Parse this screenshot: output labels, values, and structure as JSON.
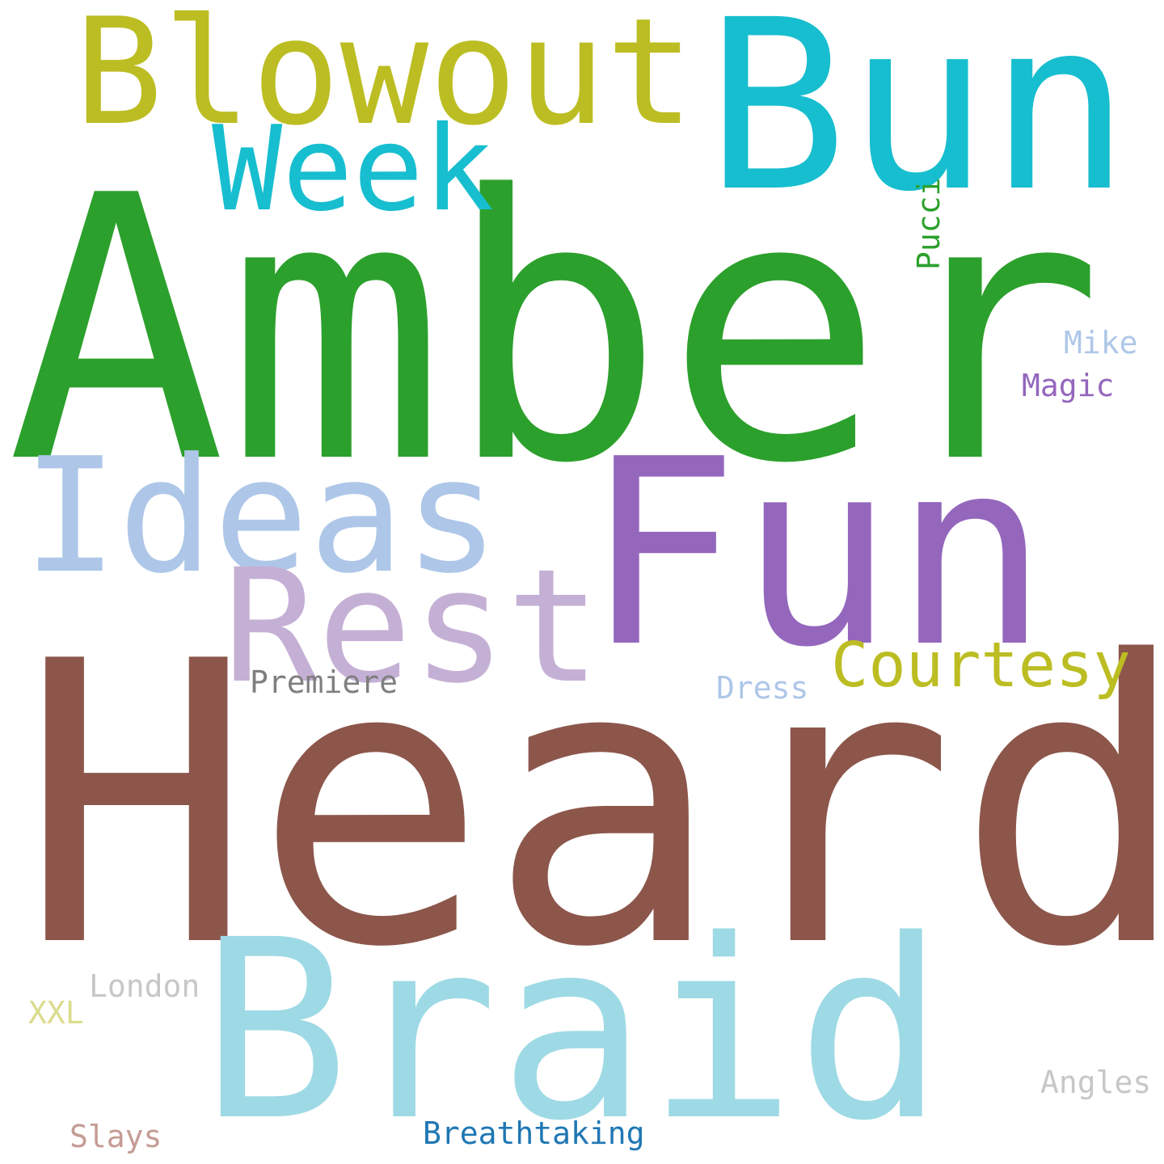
{
  "words": [
    {
      "id": "amber",
      "text": "Amber",
      "color": "#2ca02c"
    },
    {
      "id": "heard",
      "text": "Heard",
      "color": "#8c564b"
    },
    {
      "id": "bun",
      "text": "Bun",
      "color": "#17becf"
    },
    {
      "id": "braid",
      "text": "Braid",
      "color": "#9edae5"
    },
    {
      "id": "fun",
      "text": "Fun",
      "color": "#9467bd"
    },
    {
      "id": "blowout",
      "text": "Blowout",
      "color": "#bcbd22"
    },
    {
      "id": "ideas",
      "text": "Ideas",
      "color": "#aec7e8"
    },
    {
      "id": "rest",
      "text": "Rest",
      "color": "#c5b0d5"
    },
    {
      "id": "week",
      "text": "Week",
      "color": "#17becf"
    },
    {
      "id": "courtesy",
      "text": "Courtesy",
      "color": "#bcbd22"
    },
    {
      "id": "premiere",
      "text": "Premiere",
      "color": "#7f7f7f"
    },
    {
      "id": "dress",
      "text": "Dress",
      "color": "#aec7e8"
    },
    {
      "id": "pucci",
      "text": "Pucci",
      "color": "#2ca02c"
    },
    {
      "id": "mike",
      "text": "Mike",
      "color": "#aec7e8"
    },
    {
      "id": "magic",
      "text": "Magic",
      "color": "#9467bd"
    },
    {
      "id": "london",
      "text": "London",
      "color": "#c7c7c7"
    },
    {
      "id": "xxl",
      "text": "XXL",
      "color": "#dbdb8d"
    },
    {
      "id": "angles",
      "text": "Angles",
      "color": "#c7c7c7"
    },
    {
      "id": "slays",
      "text": "Slays",
      "color": "#c49c94"
    },
    {
      "id": "breathtaking",
      "text": "Breathtaking",
      "color": "#1f77b4"
    }
  ]
}
